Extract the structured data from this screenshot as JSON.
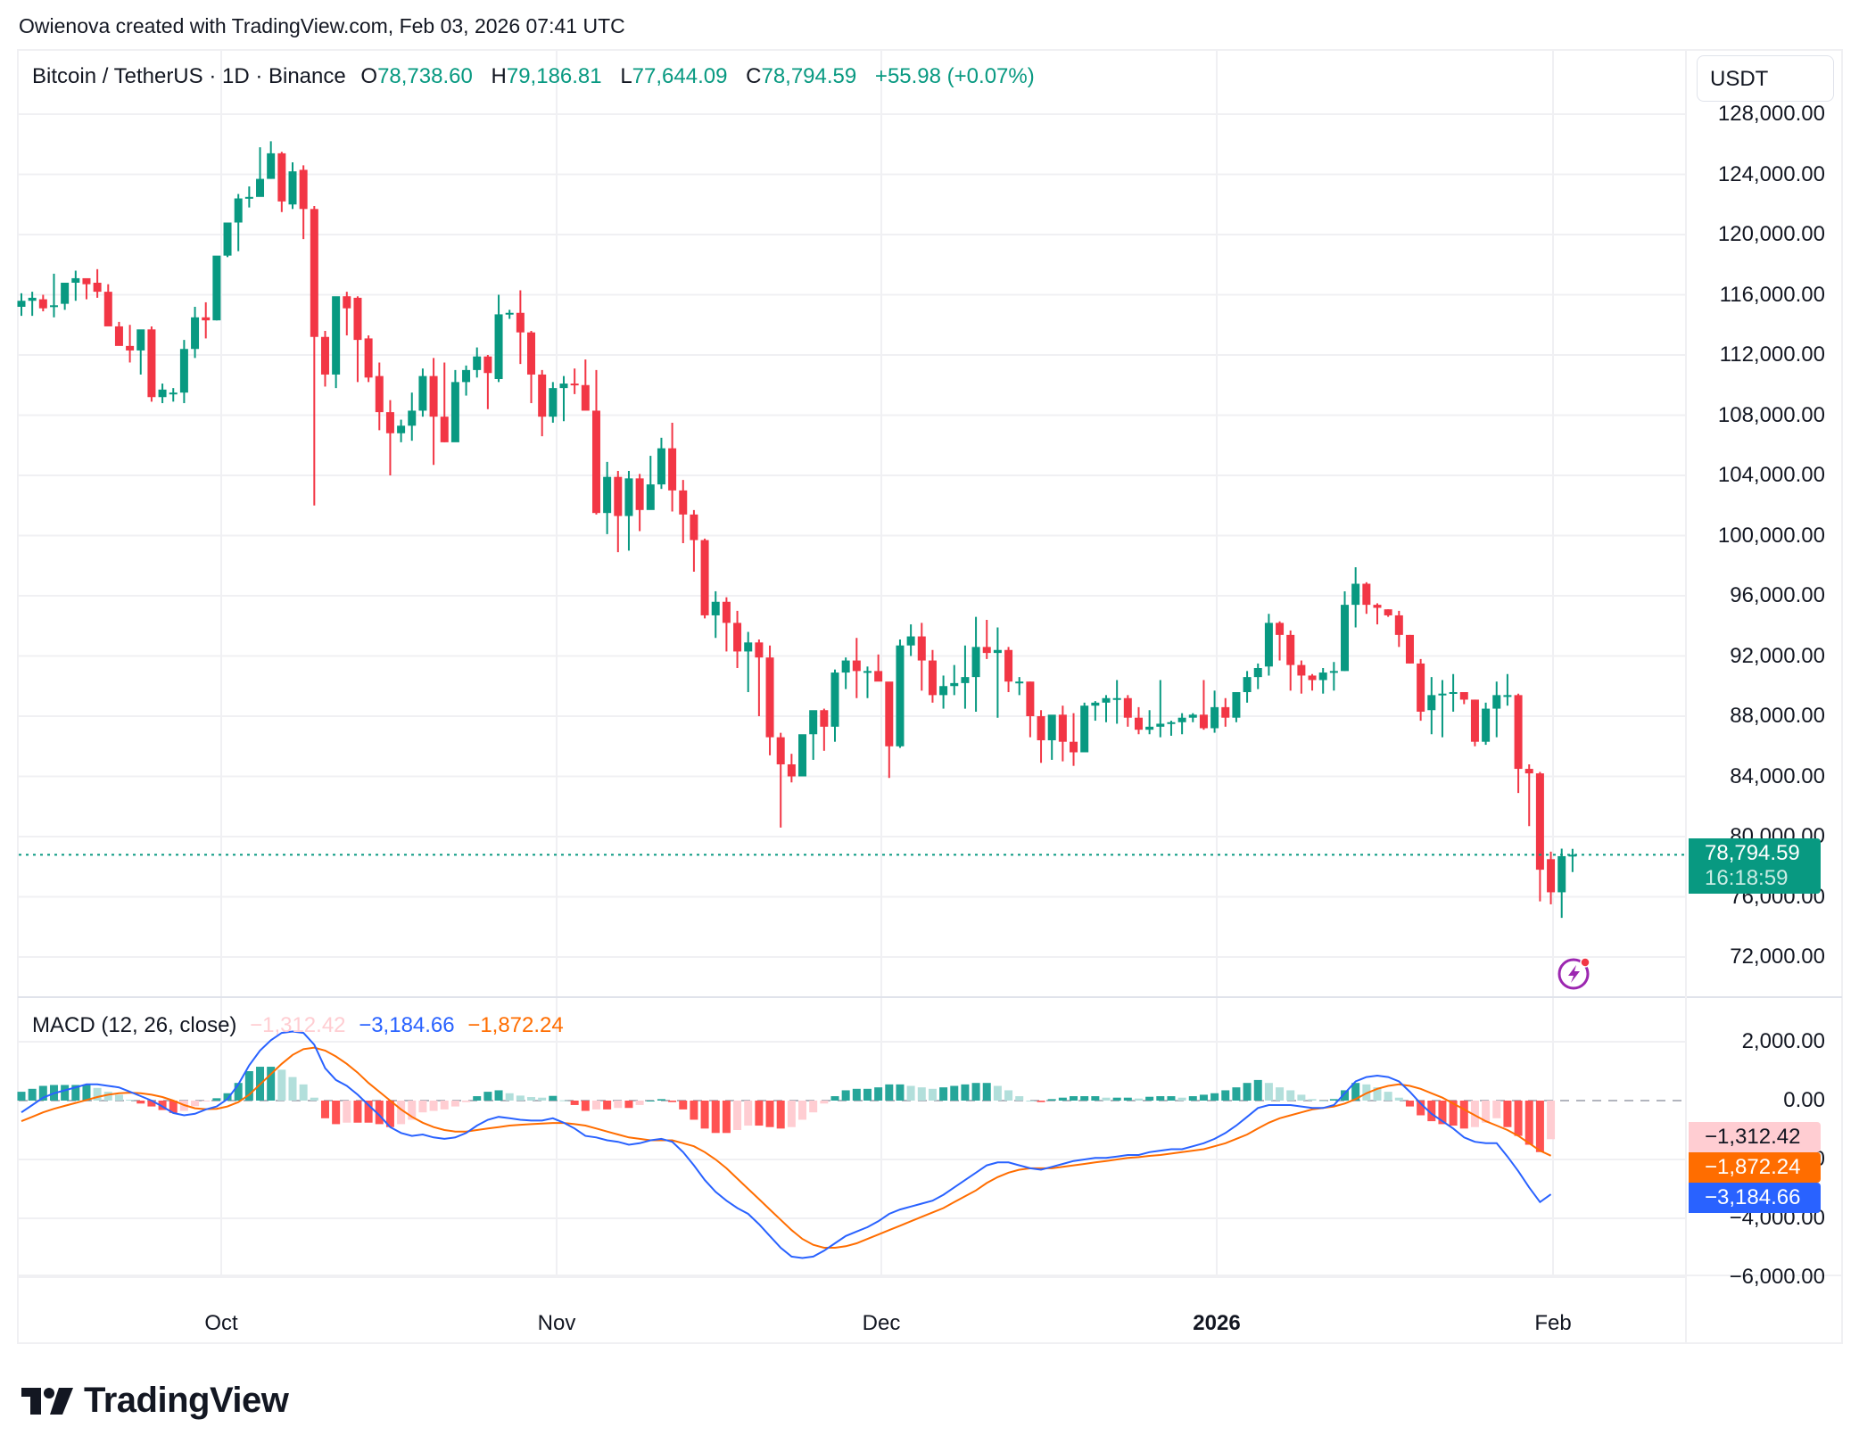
{
  "header": {
    "credit": "Owienova created with TradingView.com, Feb 03, 2026 07:41 UTC"
  },
  "legend": {
    "symbol": "Bitcoin / TetherUS · 1D · Binance",
    "o_label": "O",
    "o": "78,738.60",
    "h_label": "H",
    "h": "79,186.81",
    "l_label": "L",
    "l": "77,644.09",
    "c_label": "C",
    "c": "78,794.59",
    "change": "+55.98 (+0.07%)"
  },
  "currency_button": "USDT",
  "price_axis": {
    "ticks": [
      "128,000.00",
      "124,000.00",
      "120,000.00",
      "116,000.00",
      "112,000.00",
      "108,000.00",
      "104,000.00",
      "100,000.00",
      "96,000.00",
      "92,000.00",
      "88,000.00",
      "84,000.00",
      "80,000.00",
      "76,000.00",
      "72,000.00"
    ]
  },
  "last_price": {
    "value": "78,794.59",
    "countdown": "16:18:59"
  },
  "macd": {
    "title": "MACD (12, 26, close)",
    "histogram": "−1,312.42",
    "macd": "−3,184.66",
    "signal": "−1,872.24",
    "ticks": [
      "2,000.00",
      "0.00",
      "−2,000.00",
      "−4,000.00",
      "−6,000.00"
    ]
  },
  "x_axis": {
    "labels": [
      {
        "text": "Oct",
        "bold": false
      },
      {
        "text": "Nov",
        "bold": false
      },
      {
        "text": "Dec",
        "bold": false
      },
      {
        "text": "2026",
        "bold": true
      },
      {
        "text": "Feb",
        "bold": false
      }
    ]
  },
  "logo": {
    "text": "TradingView"
  },
  "colors": {
    "up": "#089981",
    "down": "#f23645",
    "hist_up_strong": "#26a69a",
    "hist_up_weak": "#b2dfdb",
    "hist_down_strong": "#ff5252",
    "hist_down_weak": "#ffcdd2",
    "macd_line": "#2962ff",
    "signal_line": "#ff6d00",
    "grid": "#f0f0f3",
    "text": "#131722"
  },
  "chart_data": [
    {
      "type": "candlestick",
      "title": "Bitcoin / TetherUS · 1D · Binance",
      "ylabel": "USDT",
      "ylim": [
        70000,
        130000
      ],
      "x_range": [
        "2025-09-16",
        "2026-02-03"
      ],
      "x_ticks": [
        "Oct",
        "Nov",
        "Dec",
        "2026",
        "Feb"
      ],
      "grid": true,
      "last": {
        "open": 78738.6,
        "high": 79186.81,
        "low": 77644.09,
        "close": 78794.59,
        "change": 55.98,
        "change_pct": 0.07
      },
      "ohlc": [
        [
          115200,
          116100,
          114600,
          115600
        ],
        [
          115600,
          116200,
          114600,
          115800
        ],
        [
          115700,
          116000,
          114900,
          115100
        ],
        [
          115200,
          117400,
          114500,
          115300
        ],
        [
          115400,
          116600,
          115000,
          116800
        ],
        [
          116800,
          117600,
          115600,
          117100
        ],
        [
          117100,
          117000,
          115700,
          116700
        ],
        [
          116800,
          117700,
          115800,
          116200
        ],
        [
          116200,
          116700,
          114600,
          113900
        ],
        [
          113900,
          114200,
          113000,
          112600
        ],
        [
          112600,
          114000,
          111500,
          112300
        ],
        [
          112300,
          112900,
          110700,
          113700
        ],
        [
          113700,
          113900,
          108900,
          109200
        ],
        [
          109200,
          110100,
          108800,
          109700
        ],
        [
          109500,
          109800,
          108900,
          109500
        ],
        [
          109500,
          113000,
          108800,
          112400
        ],
        [
          112400,
          115200,
          111800,
          114500
        ],
        [
          114500,
          115500,
          113100,
          114300
        ],
        [
          114300,
          118400,
          114300,
          118600
        ],
        [
          118600,
          120700,
          118500,
          120800
        ],
        [
          120800,
          122700,
          118900,
          122400
        ],
        [
          122400,
          123200,
          121800,
          122500
        ],
        [
          122500,
          125800,
          122600,
          123700
        ],
        [
          123700,
          126200,
          123700,
          125400
        ],
        [
          125400,
          125500,
          121500,
          122200
        ],
        [
          122000,
          124800,
          121700,
          124200
        ],
        [
          124300,
          124600,
          119700,
          121700
        ],
        [
          121700,
          121900,
          102000,
          113200
        ],
        [
          113200,
          113600,
          109900,
          110700
        ],
        [
          110700,
          115800,
          109800,
          115900
        ],
        [
          115900,
          116200,
          113300,
          115100
        ],
        [
          115800,
          115900,
          110200,
          113000
        ],
        [
          113100,
          113300,
          110200,
          110500
        ],
        [
          110600,
          111500,
          107000,
          108200
        ],
        [
          108200,
          109000,
          104000,
          106800
        ],
        [
          106800,
          107700,
          106200,
          107300
        ],
        [
          107300,
          109500,
          106300,
          108300
        ],
        [
          108300,
          111100,
          107900,
          110600
        ],
        [
          110600,
          111800,
          104700,
          107900
        ],
        [
          107900,
          111500,
          106200,
          106200
        ],
        [
          106200,
          111000,
          106300,
          110200
        ],
        [
          110200,
          111300,
          109300,
          111000
        ],
        [
          111000,
          112500,
          110500,
          111900
        ],
        [
          111900,
          112000,
          108400,
          110800
        ],
        [
          110400,
          116000,
          110200,
          114700
        ],
        [
          114700,
          115000,
          114400,
          114800
        ],
        [
          114800,
          116300,
          111400,
          113500
        ],
        [
          113500,
          113600,
          108800,
          110700
        ],
        [
          110700,
          111000,
          106600,
          107900
        ],
        [
          107900,
          110200,
          107500,
          109800
        ],
        [
          109800,
          110600,
          107600,
          110100
        ],
        [
          110100,
          111100,
          109400,
          110000
        ],
        [
          110000,
          111700,
          108600,
          108300
        ],
        [
          108300,
          111000,
          101400,
          101500
        ],
        [
          101500,
          104900,
          100100,
          103900
        ],
        [
          103900,
          104300,
          98900,
          101300
        ],
        [
          101300,
          104300,
          99000,
          103800
        ],
        [
          103800,
          104100,
          100300,
          101700
        ],
        [
          101700,
          105300,
          102200,
          103400
        ],
        [
          103400,
          106500,
          103100,
          105800
        ],
        [
          105800,
          107500,
          101600,
          103000
        ],
        [
          103000,
          103700,
          99500,
          101400
        ],
        [
          101400,
          101700,
          97600,
          99700
        ],
        [
          99700,
          99800,
          94500,
          94700
        ],
        [
          94700,
          96300,
          93200,
          95600
        ],
        [
          95600,
          95900,
          92300,
          94200
        ],
        [
          94200,
          95000,
          91200,
          92300
        ],
        [
          92300,
          93600,
          89600,
          92900
        ],
        [
          92900,
          93100,
          88000,
          91900
        ],
        [
          91900,
          92700,
          85400,
          86600
        ],
        [
          86600,
          86900,
          80600,
          84800
        ],
        [
          84800,
          85500,
          83600,
          84000
        ],
        [
          84000,
          86700,
          84000,
          86800
        ],
        [
          86800,
          88300,
          85100,
          88400
        ],
        [
          88400,
          88500,
          85700,
          87300
        ],
        [
          87300,
          91100,
          86300,
          90900
        ],
        [
          90900,
          91900,
          89800,
          91700
        ],
        [
          91700,
          93200,
          89200,
          91000
        ],
        [
          91000,
          91300,
          89200,
          91000
        ],
        [
          91000,
          92100,
          90600,
          90300
        ],
        [
          90300,
          90100,
          83900,
          86000
        ],
        [
          86000,
          93100,
          85900,
          92700
        ],
        [
          92700,
          94100,
          92000,
          93300
        ],
        [
          93300,
          94200,
          89700,
          91700
        ],
        [
          91700,
          92400,
          88900,
          89400
        ],
        [
          89400,
          90700,
          88500,
          90000
        ],
        [
          90000,
          91400,
          89400,
          90200
        ],
        [
          90200,
          92700,
          88500,
          90600
        ],
        [
          90600,
          94600,
          88300,
          92600
        ],
        [
          92600,
          94400,
          91800,
          92200
        ],
        [
          92200,
          93900,
          87900,
          92400
        ],
        [
          92400,
          92600,
          89600,
          90300
        ],
        [
          90300,
          90600,
          89400,
          90300
        ],
        [
          90300,
          90300,
          86600,
          88000
        ],
        [
          88000,
          88400,
          84900,
          86400
        ],
        [
          86400,
          87600,
          85100,
          88100
        ],
        [
          88100,
          88700,
          85000,
          86300
        ],
        [
          86300,
          88200,
          84700,
          85600
        ],
        [
          85600,
          88900,
          85700,
          88700
        ],
        [
          88700,
          89000,
          87700,
          88900
        ],
        [
          88900,
          89400,
          87600,
          89200
        ],
        [
          89200,
          90400,
          87500,
          89200
        ],
        [
          89200,
          89400,
          87300,
          87900
        ],
        [
          87900,
          88600,
          86800,
          87100
        ],
        [
          87100,
          88400,
          86800,
          87300
        ],
        [
          87300,
          90400,
          86600,
          87500
        ],
        [
          87500,
          87700,
          86700,
          87600
        ],
        [
          87600,
          88200,
          86800,
          87900
        ],
        [
          87900,
          88200,
          87600,
          88100
        ],
        [
          88100,
          90400,
          87100,
          87200
        ],
        [
          87200,
          89700,
          86900,
          88600
        ],
        [
          88600,
          89200,
          87300,
          87900
        ],
        [
          87900,
          89600,
          87600,
          89600
        ],
        [
          89600,
          91000,
          88900,
          90600
        ],
        [
          90600,
          91500,
          89800,
          91200
        ],
        [
          91300,
          94800,
          90700,
          94200
        ],
        [
          94200,
          94300,
          91700,
          93400
        ],
        [
          93400,
          93700,
          89700,
          91400
        ],
        [
          91400,
          91700,
          89500,
          90700
        ],
        [
          90700,
          90800,
          89700,
          90400
        ],
        [
          90400,
          91200,
          89500,
          90900
        ],
        [
          90900,
          91600,
          89700,
          91000
        ],
        [
          91000,
          96300,
          91000,
          95400
        ],
        [
          95400,
          97900,
          93900,
          96800
        ],
        [
          96800,
          96900,
          94800,
          95400
        ],
        [
          95400,
          95500,
          94100,
          95200
        ],
        [
          95100,
          95100,
          94600,
          94700
        ],
        [
          94700,
          95000,
          92600,
          93400
        ],
        [
          93400,
          93400,
          91500,
          91500
        ],
        [
          91500,
          91800,
          87700,
          88300
        ],
        [
          88400,
          90600,
          86800,
          89400
        ],
        [
          89500,
          90400,
          86600,
          89500
        ],
        [
          89500,
          90800,
          88300,
          89600
        ],
        [
          89600,
          89600,
          88800,
          89100
        ],
        [
          89100,
          89100,
          86000,
          86300
        ],
        [
          86300,
          88900,
          86100,
          88500
        ],
        [
          88500,
          90300,
          86600,
          89400
        ],
        [
          89300,
          90800,
          88700,
          89400
        ],
        [
          89400,
          89500,
          82900,
          84500
        ],
        [
          84500,
          84800,
          80700,
          84200
        ],
        [
          84200,
          84300,
          75700,
          77800
        ],
        [
          78500,
          79000,
          75500,
          76300
        ],
        [
          76300,
          79200,
          74600,
          78700
        ],
        [
          78738.6,
          79186.81,
          77644.09,
          78794.59
        ]
      ]
    },
    {
      "type": "line+bar",
      "title": "MACD (12, 26, close)",
      "ylim": [
        -6600,
        2800
      ],
      "y_ticks": [
        2000,
        0,
        -2000,
        -4000,
        -6000
      ],
      "last": {
        "histogram": -1312.42,
        "macd": -3184.66,
        "signal": -1872.24
      },
      "macd_line": [
        -400,
        -150,
        100,
        250,
        350,
        450,
        550,
        550,
        500,
        450,
        300,
        150,
        0,
        -200,
        -420,
        -500,
        -450,
        -300,
        -200,
        50,
        550,
        1200,
        1700,
        2050,
        2300,
        2350,
        2300,
        1900,
        1100,
        700,
        500,
        200,
        -150,
        -500,
        -900,
        -1100,
        -1200,
        -1150,
        -1250,
        -1300,
        -1250,
        -1100,
        -850,
        -650,
        -550,
        -600,
        -650,
        -680,
        -680,
        -600,
        -750,
        -950,
        -1200,
        -1250,
        -1350,
        -1400,
        -1500,
        -1450,
        -1350,
        -1300,
        -1400,
        -1750,
        -2200,
        -2700,
        -3100,
        -3400,
        -3650,
        -3850,
        -4200,
        -4600,
        -5000,
        -5300,
        -5350,
        -5300,
        -5100,
        -4850,
        -4600,
        -4450,
        -4300,
        -4100,
        -3850,
        -3700,
        -3600,
        -3500,
        -3400,
        -3200,
        -2950,
        -2700,
        -2450,
        -2200,
        -2100,
        -2100,
        -2200,
        -2300,
        -2350,
        -2250,
        -2150,
        -2050,
        -2000,
        -1950,
        -1950,
        -1900,
        -1850,
        -1850,
        -1750,
        -1700,
        -1650,
        -1650,
        -1550,
        -1450,
        -1300,
        -1100,
        -850,
        -550,
        -250,
        -150,
        -150,
        -150,
        -200,
        -250,
        -250,
        -150,
        250,
        650,
        800,
        850,
        800,
        650,
        300,
        -100,
        -450,
        -700,
        -950,
        -1250,
        -1400,
        -1450,
        -1450,
        -1900,
        -2400,
        -2950,
        -3450,
        -3184.66
      ],
      "signal_line": [
        -700,
        -550,
        -400,
        -280,
        -180,
        -80,
        20,
        120,
        200,
        250,
        270,
        250,
        200,
        120,
        0,
        -150,
        -260,
        -290,
        -280,
        -200,
        -50,
        200,
        550,
        900,
        1250,
        1550,
        1750,
        1800,
        1700,
        1500,
        1250,
        950,
        600,
        300,
        0,
        -300,
        -550,
        -750,
        -900,
        -1000,
        -1050,
        -1050,
        -1000,
        -950,
        -900,
        -850,
        -820,
        -800,
        -780,
        -760,
        -760,
        -800,
        -850,
        -950,
        -1050,
        -1150,
        -1250,
        -1300,
        -1350,
        -1350,
        -1350,
        -1450,
        -1550,
        -1750,
        -2000,
        -2300,
        -2650,
        -3000,
        -3350,
        -3700,
        -4050,
        -4400,
        -4700,
        -4900,
        -5000,
        -5000,
        -4950,
        -4850,
        -4700,
        -4550,
        -4400,
        -4250,
        -4100,
        -3950,
        -3800,
        -3650,
        -3450,
        -3250,
        -3050,
        -2800,
        -2600,
        -2450,
        -2350,
        -2300,
        -2300,
        -2300,
        -2250,
        -2200,
        -2150,
        -2100,
        -2050,
        -2000,
        -1950,
        -1920,
        -1880,
        -1850,
        -1800,
        -1750,
        -1700,
        -1650,
        -1550,
        -1450,
        -1300,
        -1150,
        -950,
        -750,
        -600,
        -500,
        -400,
        -300,
        -250,
        -200,
        -100,
        50,
        250,
        400,
        500,
        550,
        500,
        400,
        250,
        100,
        -100,
        -300,
        -500,
        -700,
        -850,
        -1000,
        -1200,
        -1450,
        -1700,
        -1872.24
      ]
    }
  ]
}
